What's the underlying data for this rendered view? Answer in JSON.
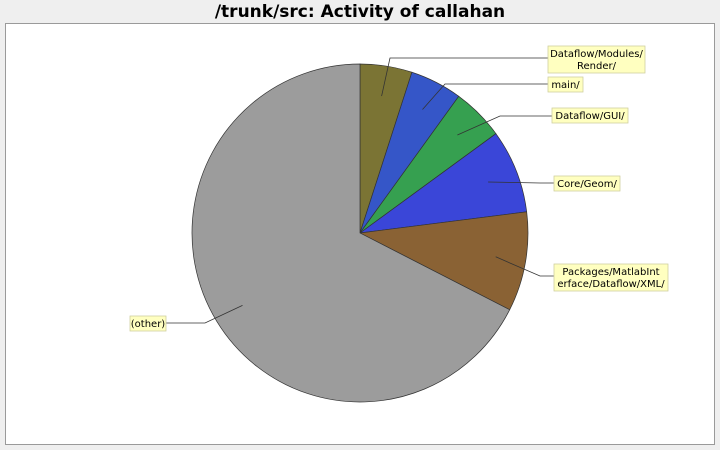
{
  "chart_data": {
    "type": "pie",
    "title": "/trunk/src: Activity of callahan",
    "slices": [
      {
        "label": [
          "Dataflow/Modules/",
          "Render/"
        ],
        "value": 5.0,
        "color": "#7b7434"
      },
      {
        "label": [
          "main/"
        ],
        "value": 5.0,
        "color": "#3556c8"
      },
      {
        "label": [
          "Dataflow/GUI/"
        ],
        "value": 5.0,
        "color": "#36a050"
      },
      {
        "label": [
          "Core/Geom/"
        ],
        "value": 8.0,
        "color": "#3a46d8"
      },
      {
        "label": [
          "Packages/MatlabInt",
          "erface/Dataflow/XML/"
        ],
        "value": 9.5,
        "color": "#8a6234"
      },
      {
        "label": [
          "(other)"
        ],
        "value": 67.5,
        "color": "#9c9c9c"
      }
    ],
    "legend": "none",
    "colors": {
      "label_background": "#ffffc0",
      "label_border": "#d0d0a0",
      "plot_background": "#ffffff",
      "page_background": "#efefef"
    }
  }
}
